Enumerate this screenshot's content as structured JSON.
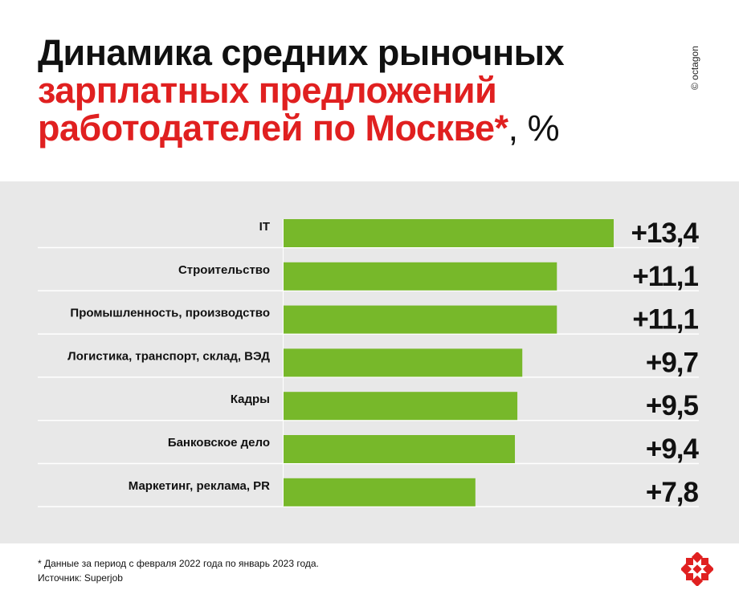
{
  "title": {
    "line1": "Динамика средних рыночных",
    "line2": "зарплатных предложений",
    "line3_red": "работодателей по Москве*",
    "line3_suffix": ", %"
  },
  "copyright": "© octagon",
  "footnote": "* Данные за период с февраля 2022 года по январь 2023 года.",
  "source": "Источник: Superjob",
  "colors": {
    "bar": "#77b82a",
    "accent": "#e02020",
    "panel": "#e8e8e8"
  },
  "chart_data": {
    "type": "bar",
    "orientation": "horizontal",
    "categories": [
      "IT",
      "Строительство",
      "Промышленность, производство",
      "Логистика, транспорт, склад, ВЭД",
      "Кадры",
      "Банковское дело",
      "Маркетинг, реклама, PR"
    ],
    "values": [
      13.4,
      11.1,
      11.1,
      9.7,
      9.5,
      9.4,
      7.8
    ],
    "labels": [
      "+13,4",
      "+11,1",
      "+11,1",
      "+9,7",
      "+9,5",
      "+9,4",
      "+7,8"
    ],
    "unit": "%",
    "xlim": [
      0,
      13.4
    ]
  }
}
